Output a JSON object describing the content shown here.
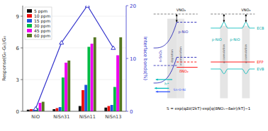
{
  "chart_data": {
    "type": "bar",
    "categories": [
      "NiO",
      "NiSn31",
      "NiSn11",
      "NiSn13"
    ],
    "y_label": "Response(G₀-G₀)/G₀",
    "y2_label": "Interface bonds(%)",
    "series": [
      {
        "name": "5 ppm",
        "color": "#111111",
        "values": [
          0.15,
          0.2,
          0.5,
          0.35
        ]
      },
      {
        "name": "10 ppm",
        "color": "#ee1111",
        "values": [
          0.2,
          0.3,
          2.0,
          0.5
        ]
      },
      {
        "name": "15 ppm",
        "color": "#2255dd",
        "values": [
          0.2,
          0.4,
          2.5,
          0.6
        ]
      },
      {
        "name": "30 ppm",
        "color": "#00bb44",
        "values": [
          0.3,
          3.2,
          6.1,
          2.3
        ]
      },
      {
        "name": "45 ppm",
        "color": "#ee00ee",
        "values": [
          0.8,
          4.6,
          6.4,
          5.3
        ]
      },
      {
        "name": "60 ppm",
        "color": "#557722",
        "values": [
          0.9,
          4.8,
          7.0,
          7.0
        ]
      },
      {
        "type": "line",
        "axis": "y2",
        "color": "#3333cc",
        "marker": "triangle",
        "values": [
          0.5,
          13.0,
          20.0,
          12.0
        ]
      }
    ],
    "ylim": [
      0,
      10
    ],
    "yticks": [
      0,
      3,
      6,
      9
    ],
    "y2lim": [
      0,
      20
    ],
    "y2ticks": [
      0,
      10,
      20
    ],
    "legend": "upper left",
    "annotations": [
      "δNO₂",
      "n-SnO₂",
      "p-NiO",
      "depletion",
      "accumulation",
      "VNO₂",
      "h⁺",
      "Sn-O-Ni",
      "VNO₂",
      "p-NiO",
      "p-NiO",
      "accumulation",
      "accumulation",
      "ECB",
      "EFP",
      "EVB",
      "S = exp(qΔV/2kT)·exp[q(δNO₂−δair)/kT]−1"
    ]
  }
}
